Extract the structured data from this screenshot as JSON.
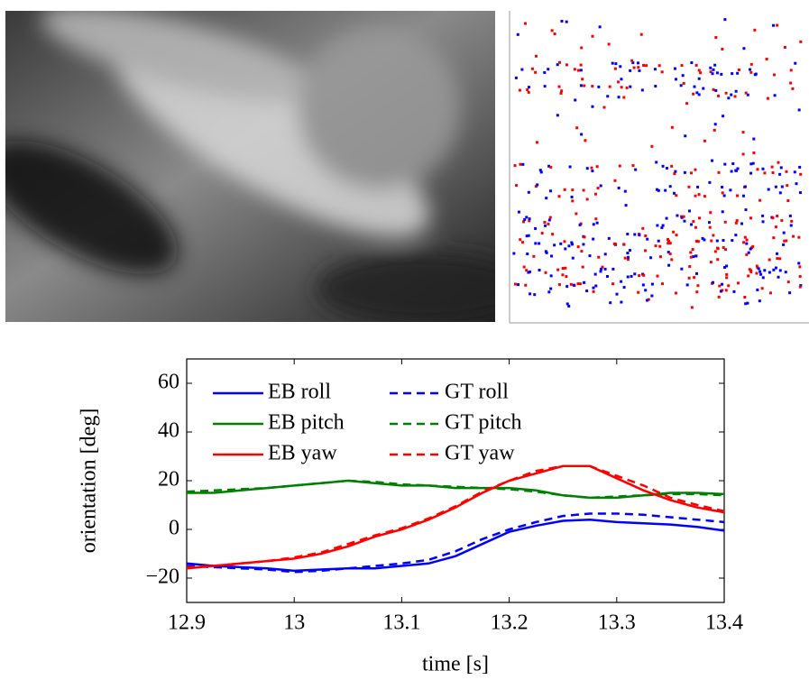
{
  "chart_data": {
    "type": "line",
    "x_label": "time [s]",
    "y_label": "orientation [deg]",
    "x": [
      12.9,
      12.925,
      12.95,
      12.975,
      13.0,
      13.025,
      13.05,
      13.075,
      13.1,
      13.125,
      13.15,
      13.175,
      13.2,
      13.225,
      13.25,
      13.275,
      13.3,
      13.325,
      13.35,
      13.375,
      13.4
    ],
    "xlim": [
      12.9,
      13.4
    ],
    "xticks": [
      12.9,
      13,
      13.1,
      13.2,
      13.3,
      13.4
    ],
    "ylim": [
      -30,
      70
    ],
    "yticks": [
      -20,
      0,
      20,
      40,
      60
    ],
    "legend": "upper left",
    "series": [
      {
        "name": "EB roll",
        "color": "#0000ff",
        "line_style": "solid",
        "values": [
          -14,
          -15,
          -15.5,
          -16,
          -17,
          -16.5,
          -16,
          -16,
          -15,
          -14,
          -11,
          -6,
          -1,
          1.5,
          3.5,
          4,
          3,
          2.5,
          2,
          1,
          -0.5
        ]
      },
      {
        "name": "GT roll",
        "color": "#0000ff",
        "line_style": "dashed",
        "values": [
          -15,
          -15.5,
          -16,
          -16.5,
          -17.5,
          -17,
          -16,
          -15,
          -14,
          -12.5,
          -9,
          -4,
          0,
          3,
          5.5,
          6.5,
          6.5,
          6,
          5,
          4,
          3
        ]
      },
      {
        "name": "EB pitch",
        "color": "#008000",
        "line_style": "solid",
        "values": [
          15,
          15,
          16,
          17,
          18,
          19,
          20,
          19,
          18,
          18,
          17,
          17,
          17,
          16,
          14,
          13,
          13,
          14,
          15,
          15,
          14.5
        ]
      },
      {
        "name": "GT pitch",
        "color": "#008000",
        "line_style": "dashed",
        "values": [
          15.5,
          16,
          16.5,
          17,
          18,
          19,
          20,
          19.5,
          18.5,
          18,
          17.5,
          17,
          16.5,
          15.5,
          14,
          13,
          13.5,
          14,
          14.5,
          14.5,
          14
        ]
      },
      {
        "name": "EB yaw",
        "color": "#ff0000",
        "line_style": "solid",
        "values": [
          -16,
          -15,
          -14,
          -13,
          -12,
          -10,
          -7,
          -3,
          0,
          4,
          9,
          15,
          20,
          23,
          26,
          26,
          21,
          16,
          12,
          9,
          7
        ]
      },
      {
        "name": "GT yaw",
        "color": "#ff0000",
        "line_style": "dashed",
        "values": [
          -15.5,
          -15,
          -14,
          -13,
          -11.5,
          -9.5,
          -6,
          -2.5,
          0.5,
          4.5,
          9.5,
          15.5,
          20,
          24,
          26,
          26,
          22,
          18,
          13,
          10,
          7.5
        ]
      }
    ]
  }
}
